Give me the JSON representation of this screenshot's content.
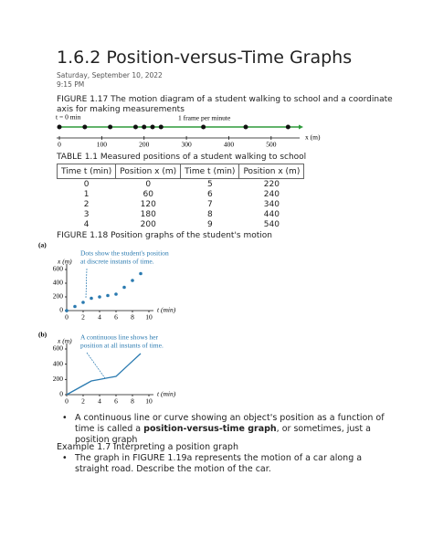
{
  "title": "1.6.2 Position-versus-Time Graphs",
  "date": "Saturday, September 10, 2022",
  "time": "9:15 PM",
  "figure117": {
    "caption": "FIGURE 1.17 The motion diagram of a student walking to school and a coordinate axis for making measurements",
    "start_label": "t = 0 min",
    "frame_label": "1 frame per minute",
    "axis_label": "x (m)",
    "ticks": [
      0,
      100,
      200,
      300,
      400,
      500
    ],
    "xlim": [
      0,
      550
    ],
    "positions": [
      0,
      60,
      120,
      180,
      200,
      220,
      240,
      340,
      440,
      540
    ]
  },
  "table": {
    "caption": "TABLE 1.1 Measured positions of a student walking to school",
    "headers": [
      "Time t (min)",
      "Position x (m)",
      "Time t (min)",
      "Position x (m)"
    ],
    "rows": [
      [
        0,
        0,
        5,
        220
      ],
      [
        1,
        60,
        6,
        240
      ],
      [
        2,
        120,
        7,
        340
      ],
      [
        3,
        180,
        8,
        440
      ],
      [
        4,
        200,
        9,
        540
      ]
    ]
  },
  "figure118": {
    "caption": "FIGURE 1.18 Position graphs of the student's motion",
    "panels": [
      {
        "label": "(a)",
        "kind": "scatter",
        "annotation": [
          "Dots show the student's position",
          "at discrete instants of time."
        ],
        "y_label": "x (m)",
        "x_label": "t (min)",
        "t": [
          0,
          1,
          2,
          3,
          4,
          5,
          6,
          7,
          8,
          9
        ],
        "x": [
          0,
          60,
          120,
          180,
          200,
          220,
          240,
          340,
          440,
          540
        ],
        "xlim": [
          0,
          10
        ],
        "ylim": [
          0,
          600
        ],
        "xticks": [
          0,
          2,
          4,
          6,
          8,
          10
        ],
        "yticks": [
          0,
          200,
          400,
          600
        ],
        "color": "#2a7ab0"
      },
      {
        "label": "(b)",
        "kind": "line",
        "annotation": [
          "A continuous line shows her",
          "position at all instants of time."
        ],
        "y_label": "x (m)",
        "x_label": "t (min)",
        "t": [
          0,
          1,
          2,
          3,
          4,
          5,
          6,
          7,
          8,
          9
        ],
        "x": [
          0,
          60,
          120,
          180,
          200,
          220,
          240,
          340,
          440,
          540
        ],
        "xlim": [
          0,
          10
        ],
        "ylim": [
          0,
          600
        ],
        "xticks": [
          0,
          2,
          4,
          6,
          8,
          10
        ],
        "yticks": [
          0,
          200,
          400,
          600
        ],
        "color": "#2a7ab0"
      }
    ]
  },
  "bullets": [
    {
      "parts": [
        "A continuous line or curve showing an object's position as a function of time is called a ",
        "position-versus-time graph",
        ", or sometimes, just a position graph"
      ]
    }
  ],
  "example": {
    "title": "Example 1.7 Interpreting a position graph",
    "bullets": [
      "The graph in FIGURE 1.19a represents the motion of a car along a straight road. Describe the motion of the car."
    ]
  }
}
